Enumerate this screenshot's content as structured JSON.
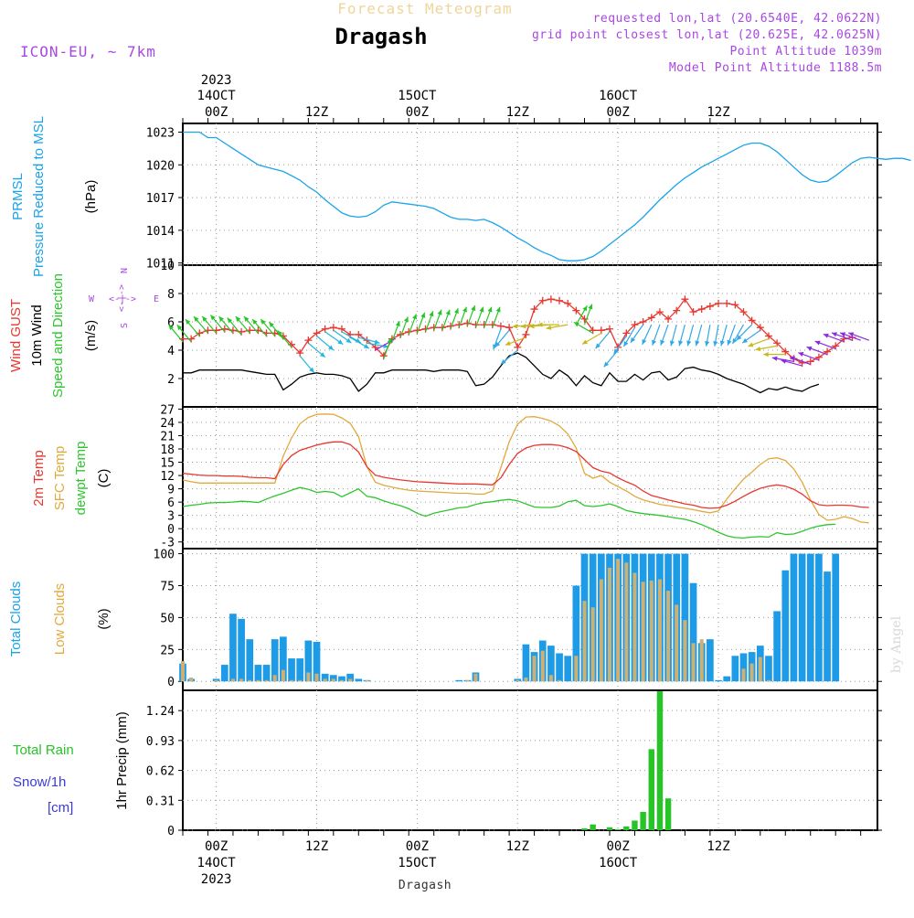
{
  "header": {
    "app": "Forecast Meteogram",
    "place": "Dragash",
    "model": "ICON-EU, ~ 7km",
    "info": [
      "requested lon,lat (20.6540E, 42.0622N)",
      "grid point closest lon,lat (20.625E, 42.0625N)",
      "Point Altitude 1039m",
      "Model Point Altitude 1188.5m"
    ],
    "watermark": "by Angel",
    "bottom_label": "Dragash"
  },
  "time_axis": {
    "top": [
      {
        "line1": "2023",
        "line2": "14OCT",
        "line3": "00Z"
      },
      {
        "line3": "12Z"
      },
      {
        "line2": "15OCT",
        "line3": "00Z"
      },
      {
        "line3": "12Z"
      },
      {
        "line2": "16OCT",
        "line3": "00Z"
      },
      {
        "line3": "12Z"
      }
    ],
    "bottom": [
      {
        "line1": "00Z",
        "line2": "14OCT",
        "line3": "2023"
      },
      {
        "line1": "12Z"
      },
      {
        "line1": "00Z",
        "line2": "15OCT"
      },
      {
        "line1": "12Z"
      },
      {
        "line1": "00Z",
        "line2": "16OCT"
      },
      {
        "line1": "12Z"
      }
    ]
  },
  "panel_labels": {
    "pressure": {
      "name1": "PRMSL",
      "name2": "Pressure Reduced to MSL",
      "unit": "(hPa)"
    },
    "wind": {
      "gust": "Wind GUST",
      "wind": "10m Wind",
      "dir": "Speed and Direction",
      "unit": "(m/s)"
    },
    "compass": {
      "w": "W",
      "e": "E",
      "n": "N",
      "s": "S",
      "arrow_h": "<-|->",
      "arrow_v": "<-|->"
    },
    "temp": {
      "t2m": "2m Temp",
      "sfc": "SFC Temp",
      "dew": "dewpt Temp",
      "unit": "(C)"
    },
    "clouds": {
      "total": "Total Clouds",
      "low": "Low Clouds",
      "unit": "(%)"
    },
    "precip": {
      "rain": "Total  Rain",
      "snow": "Snow/1h",
      "snow_unit": "[cm]",
      "axis": "1hr Precip (mm)"
    }
  },
  "chart_data": [
    {
      "type": "line",
      "panel": "pressure",
      "x_start": "2023-10-13T20:00Z",
      "x_step_hours": 1,
      "yticks": [
        "1011",
        "1014",
        "1017",
        "1020",
        "1023"
      ],
      "ylim": [
        1010.8,
        1023.8
      ],
      "series": [
        {
          "values": [
            1023,
            1023,
            1023,
            1022.5,
            1022.5,
            1022,
            1021.5,
            1021,
            1020.5,
            1020,
            1019.8,
            1019.6,
            1019.4,
            1019,
            1018.6,
            1018,
            1017.5,
            1016.8,
            1016.2,
            1015.6,
            1015.3,
            1015.2,
            1015.3,
            1015.7,
            1016.3,
            1016.6,
            1016.5,
            1016.4,
            1016.3,
            1016.2,
            1016.0,
            1015.6,
            1015.2,
            1015.0,
            1015.0,
            1014.9,
            1015.0,
            1014.7,
            1014.3,
            1013.8,
            1013.3,
            1012.9,
            1012.4,
            1012.0,
            1011.7,
            1011.3,
            1011.2,
            1011.2,
            1011.3,
            1011.6,
            1012.1,
            1012.7,
            1013.3,
            1013.9,
            1014.5,
            1015.2,
            1016.0,
            1016.8,
            1017.5,
            1018.2,
            1018.8,
            1019.3,
            1019.8,
            1020.2,
            1020.6,
            1021.0,
            1021.4,
            1021.8,
            1022.0,
            1022.0,
            1021.7,
            1021.2,
            1020.5,
            1019.8,
            1019.1,
            1018.6,
            1018.4,
            1018.5,
            1019.0,
            1019.6,
            1020.2,
            1020.6,
            1020.7,
            1020.6,
            1020.5,
            1020.6,
            1020.6,
            1020.4
          ]
        }
      ]
    },
    {
      "type": "line",
      "panel": "wind",
      "x_start": "2023-10-13T20:00Z",
      "x_step_hours": 1,
      "yticks": [
        "2",
        "4",
        "6",
        "8",
        "10"
      ],
      "ylim": [
        0,
        10
      ],
      "series": [
        {
          "name": "Wind GUST",
          "values": [
            4.8,
            4.8,
            5.2,
            5.4,
            5.4,
            5.5,
            5.4,
            5.3,
            5.4,
            5.4,
            5.2,
            5.2,
            5.0,
            4.4,
            3.8,
            4.7,
            5.2,
            5.5,
            5.6,
            5.5,
            5.1,
            5.1,
            4.7,
            4.2,
            3.6,
            4.8,
            5.1,
            5.3,
            5.4,
            5.5,
            5.6,
            5.6,
            5.7,
            5.8,
            5.9,
            5.8,
            5.8,
            5.8,
            5.7,
            5.6,
            4.2,
            5.1,
            6.9,
            7.5,
            7.6,
            7.5,
            7.3,
            6.8,
            6.2,
            5.4,
            5.4,
            5.5,
            4.2,
            5.2,
            5.8,
            6.0,
            6.3,
            6.7,
            6.2,
            6.8,
            7.6,
            6.7,
            6.9,
            7.1,
            7.3,
            7.3,
            7.2,
            6.7,
            6.1,
            5.6,
            5.0,
            4.5,
            3.9,
            3.4,
            3.1,
            3.2,
            3.5,
            3.9,
            4.3,
            4.8,
            4.9
          ]
        },
        {
          "name": "10m Wind",
          "values": [
            2.4,
            2.4,
            2.6,
            2.6,
            2.6,
            2.6,
            2.6,
            2.6,
            2.5,
            2.4,
            2.3,
            2.3,
            1.2,
            1.6,
            2.1,
            2.3,
            2.4,
            2.3,
            2.3,
            2.2,
            2.0,
            1.1,
            1.6,
            2.4,
            2.4,
            2.6,
            2.6,
            2.6,
            2.6,
            2.6,
            2.5,
            2.6,
            2.6,
            2.6,
            2.5,
            1.5,
            1.6,
            2.1,
            2.9,
            3.6,
            3.8,
            3.5,
            2.9,
            2.3,
            2.0,
            2.6,
            2.2,
            1.5,
            2.2,
            1.7,
            1.5,
            2.4,
            1.8,
            1.8,
            2.3,
            1.9,
            2.4,
            2.5,
            1.9,
            2.1,
            2.7,
            2.8,
            2.6,
            2.5,
            2.3,
            2.0,
            1.8,
            1.6,
            1.3,
            1.0,
            1.3,
            1.2,
            1.4,
            1.2,
            1.1,
            1.4,
            1.6
          ]
        }
      ]
    },
    {
      "type": "line",
      "panel": "temperature",
      "x_start": "2023-10-13T20:00Z",
      "x_step_hours": 1,
      "yticks": [
        "-3",
        "0",
        "3",
        "6",
        "9",
        "12",
        "15",
        "18",
        "21",
        "24",
        "27"
      ],
      "ylim": [
        -4.5,
        27.5
      ],
      "series": [
        {
          "name": "2m Temp",
          "values": [
            12.5,
            12.3,
            12.1,
            12.0,
            12.0,
            11.9,
            11.9,
            11.8,
            11.6,
            11.5,
            11.5,
            11.3,
            14.5,
            16.5,
            17.7,
            18.3,
            18.9,
            19.3,
            19.6,
            19.6,
            19.0,
            17.3,
            14.0,
            12.1,
            11.6,
            11.3,
            11.0,
            10.8,
            10.6,
            10.5,
            10.4,
            10.3,
            10.2,
            10.1,
            10.1,
            10.1,
            10.0,
            9.9,
            11.5,
            14.5,
            17.0,
            18.2,
            18.8,
            19.0,
            19.0,
            18.8,
            18.3,
            17.4,
            15.6,
            13.8,
            13.0,
            12.6,
            11.5,
            10.6,
            9.8,
            8.5,
            7.5,
            7.0,
            6.5,
            6.1,
            5.6,
            5.3,
            4.8,
            4.6,
            4.7,
            5.3,
            6.2,
            7.3,
            8.3,
            9.1,
            9.6,
            9.9,
            9.6,
            8.9,
            7.8,
            6.3,
            5.4,
            5.2,
            5.3,
            5.3,
            5.2,
            4.9,
            4.8
          ]
        },
        {
          "name": "SFC Temp",
          "values": [
            11.0,
            10.6,
            10.3,
            10.3,
            10.3,
            10.3,
            10.3,
            10.3,
            10.3,
            10.3,
            10.3,
            10.3,
            16.4,
            20.5,
            23.7,
            25.1,
            25.8,
            25.9,
            25.8,
            25.0,
            23.8,
            20.8,
            14.0,
            10.5,
            9.8,
            9.4,
            9.0,
            8.7,
            8.5,
            8.4,
            8.3,
            8.2,
            8.1,
            8.0,
            8.0,
            7.8,
            7.8,
            8.5,
            13.8,
            19.6,
            23.6,
            25.2,
            25.3,
            24.9,
            24.3,
            23.2,
            21.4,
            18.2,
            12.5,
            11.4,
            12.0,
            10.5,
            9.5,
            8.5,
            7.3,
            6.5,
            6.0,
            5.5,
            5.2,
            4.9,
            4.6,
            4.3,
            3.9,
            3.6,
            4.0,
            6.7,
            9.0,
            11.2,
            12.8,
            14.5,
            15.8,
            16.0,
            15.4,
            13.5,
            10.5,
            6.5,
            3.2,
            1.9,
            2.1,
            2.7,
            2.3,
            1.5,
            1.3
          ]
        },
        {
          "name": "dewpt Temp",
          "values": [
            5.0,
            5.3,
            5.5,
            5.8,
            5.9,
            5.9,
            6.0,
            6.2,
            6.1,
            5.9,
            6.7,
            7.4,
            8.0,
            8.7,
            9.3,
            8.9,
            8.2,
            8.4,
            8.2,
            7.2,
            8.1,
            9.0,
            7.3,
            7.0,
            6.3,
            5.7,
            5.2,
            4.5,
            3.5,
            2.8,
            3.5,
            3.9,
            4.3,
            4.7,
            4.9,
            5.5,
            5.9,
            6.1,
            6.4,
            6.6,
            6.3,
            5.6,
            4.9,
            4.8,
            4.8,
            5.1,
            6.1,
            6.4,
            5.2,
            5.0,
            5.2,
            5.6,
            5.0,
            4.1,
            3.7,
            3.4,
            3.2,
            3.0,
            2.7,
            2.4,
            2.1,
            1.6,
            0.9,
            0.1,
            -0.8,
            -1.6,
            -2.0,
            -2.1,
            -1.9,
            -1.8,
            -1.9,
            -0.9,
            -1.3,
            -1.2,
            -0.6,
            0.1,
            0.6,
            0.9,
            1.0
          ]
        }
      ]
    },
    {
      "type": "bar",
      "panel": "clouds",
      "x_start": "2023-10-13T20:00Z",
      "x_step_hours": 1,
      "yticks": [
        "0",
        "25",
        "50",
        "75",
        "100"
      ],
      "ylim": [
        -7,
        104
      ],
      "series": [
        {
          "name": "Total Clouds",
          "values": [
            14,
            2,
            0,
            0,
            2,
            13,
            53,
            49,
            33,
            13,
            13,
            33,
            35,
            18,
            18,
            32,
            31,
            6,
            5,
            4,
            6,
            2,
            1,
            0,
            0,
            0,
            0,
            0,
            0,
            0,
            0,
            0,
            0,
            1,
            1,
            7,
            0,
            0,
            0,
            0,
            2,
            29,
            23,
            32,
            28,
            22,
            20,
            75,
            100,
            100,
            100,
            100,
            100,
            100,
            100,
            100,
            100,
            100,
            100,
            100,
            100,
            77,
            30,
            33,
            1,
            4,
            20,
            22,
            23,
            28,
            20,
            55,
            87,
            100,
            100,
            100,
            100,
            86,
            100
          ]
        },
        {
          "name": "Low Clouds",
          "values": [
            16,
            3,
            0,
            0,
            1,
            0,
            2,
            2,
            1,
            1,
            1,
            5,
            9,
            1,
            1,
            7,
            6,
            2,
            2,
            1,
            2,
            0,
            1,
            0,
            0,
            0,
            0,
            0,
            0,
            0,
            0,
            0,
            0,
            0,
            1,
            6,
            0,
            0,
            0,
            0,
            1,
            3,
            20,
            24,
            5,
            1,
            0,
            20,
            63,
            58,
            80,
            89,
            96,
            93,
            85,
            78,
            79,
            80,
            71,
            60,
            48,
            30,
            33,
            0,
            0,
            0,
            0,
            10,
            14,
            19,
            1,
            0,
            0,
            0,
            0,
            0,
            0,
            0,
            0
          ]
        }
      ]
    },
    {
      "type": "bar",
      "panel": "precipitation",
      "x_start": "2023-10-13T20:00Z",
      "x_step_hours": 1,
      "yticks": [
        "0",
        "0.31",
        "0.62",
        "0.93",
        "1.24"
      ],
      "ylim": [
        0,
        1.45
      ],
      "series": [
        {
          "name": "Total Rain",
          "values": [
            0,
            0,
            0,
            0,
            0,
            0,
            0,
            0,
            0,
            0,
            0,
            0,
            0,
            0,
            0,
            0,
            0,
            0,
            0,
            0,
            0,
            0,
            0,
            0,
            0,
            0,
            0,
            0,
            0,
            0,
            0,
            0,
            0,
            0,
            0,
            0,
            0,
            0,
            0,
            0,
            0,
            0,
            0,
            0,
            0,
            0,
            0,
            0,
            0.02,
            0.06,
            0,
            0.03,
            0.01,
            0.04,
            0.1,
            0.19,
            0.84,
            1.44,
            0.33,
            0,
            0,
            0,
            0,
            0,
            0,
            0,
            0,
            0,
            0,
            0,
            0,
            0,
            0,
            0,
            0,
            0,
            0,
            0,
            0
          ]
        }
      ]
    }
  ],
  "wind_arrows": {
    "note": "direction the wind blows toward, degrees clockwise from north",
    "step_hours": 1,
    "directions": [
      320,
      320,
      320,
      320,
      320,
      320,
      320,
      320,
      320,
      320,
      320,
      320,
      320,
      320,
      140,
      130,
      130,
      125,
      125,
      120,
      120,
      105,
      100,
      60,
      20,
      20,
      20,
      20,
      20,
      20,
      20,
      20,
      20,
      20,
      20,
      20,
      20,
      20,
      200,
      220,
      230,
      250,
      265,
      265,
      265,
      270,
      260,
      30,
      20,
      300,
      240,
      220,
      220,
      215,
      210,
      215,
      205,
      200,
      200,
      195,
      195,
      195,
      195,
      190,
      190,
      195,
      200,
      210,
      225,
      235,
      250,
      260,
      270,
      280,
      285,
      290,
      290,
      290,
      290,
      290,
      290,
      290,
      290,
      290
    ]
  },
  "colors": {
    "pressure": "#1aa3ea",
    "gust": "#e8372f",
    "wind": "#000000",
    "temp2m": "#e8372f",
    "sfc": "#e2a93d",
    "dew": "#2ec62e",
    "total_clouds": "#1e9be6",
    "low_clouds": "#cdb073",
    "rain": "#27c427",
    "snow": "#3a3adc",
    "info": "#a848e0",
    "app": "#f0d59b"
  }
}
